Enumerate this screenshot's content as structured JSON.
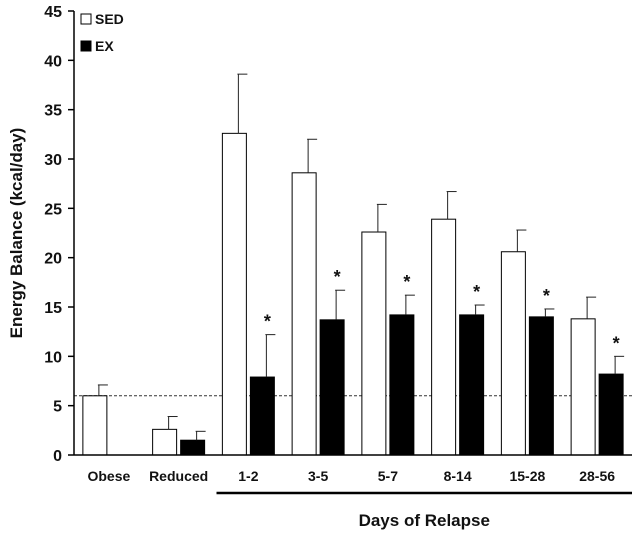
{
  "chart_data": {
    "type": "bar",
    "title": "",
    "xlabel": "Days of Relapse",
    "ylabel": "Energy Balance (kcal/day)",
    "ylim": [
      0,
      45
    ],
    "yticks": [
      0,
      5,
      10,
      15,
      20,
      25,
      30,
      35,
      40,
      45
    ],
    "categories": [
      "Obese",
      "Reduced",
      "1-2",
      "3-5",
      "5-7",
      "8-14",
      "15-28",
      "28-56"
    ],
    "series": [
      {
        "name": "SED",
        "color": "#ffffff",
        "values": [
          6.0,
          2.6,
          32.6,
          28.6,
          22.6,
          23.9,
          20.6,
          13.8
        ],
        "errors": [
          1.1,
          1.3,
          6.0,
          3.4,
          2.8,
          2.8,
          2.2,
          2.2
        ]
      },
      {
        "name": "EX",
        "color": "#000000",
        "values": [
          null,
          1.5,
          7.9,
          13.7,
          14.2,
          14.2,
          14.0,
          8.2
        ],
        "errors": [
          null,
          0.9,
          4.3,
          3.0,
          2.0,
          1.0,
          0.8,
          1.8
        ]
      }
    ],
    "significance_marker": "*",
    "significant_ex": [
      false,
      false,
      true,
      true,
      true,
      true,
      true,
      true
    ],
    "reference_line": 6.0,
    "legend_position": "top-left",
    "grid": false
  }
}
